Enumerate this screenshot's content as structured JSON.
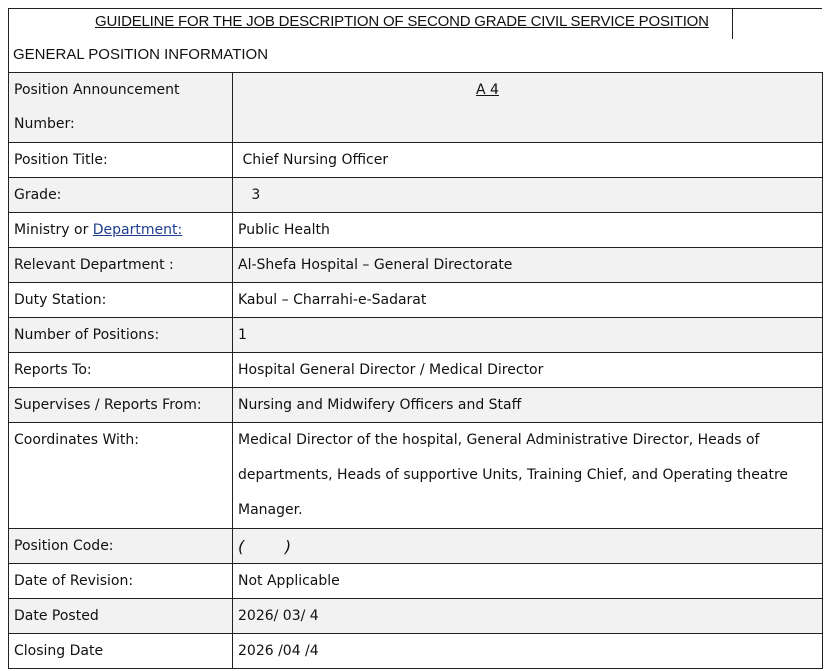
{
  "title": "GUIDELINE FOR THE JOB DESCRIPTION OF SECOND GRADE CIVIL SERVICE POSITION",
  "section": "GENERAL POSITION INFORMATION",
  "ministry_label_prefix": "Ministry or ",
  "ministry_label_link": "Department: ",
  "link_color": "#1f3e8f",
  "rows": [
    {
      "label": "Position Announcement Number:",
      "value": "A 4"
    },
    {
      "label": "Position Title:",
      "value": "Chief Nursing Officer"
    },
    {
      "label": "Grade:",
      "value": "3"
    },
    {
      "label": "Ministry or Department:",
      "value": "Public Health"
    },
    {
      "label": "Relevant Department :",
      "value": "Al-Shefa Hospital – General Directorate"
    },
    {
      "label": "Duty Station:",
      "value": "Kabul – Charrahi-e-Sadarat"
    },
    {
      "label": "Number of Positions:",
      "value": "1"
    },
    {
      "label": "Reports To:",
      "value": "Hospital General Director / Medical Director"
    },
    {
      "label": "Supervises / Reports From:",
      "value": "Nursing and Midwifery Officers and Staff"
    },
    {
      "label": "Coordinates With:",
      "value": "Medical Director of the hospital, General Administrative Director, Heads of departments, Heads of supportive Units, Training Chief, and Operating theatre Manager."
    },
    {
      "label": "Position Code:",
      "value": "(        )"
    },
    {
      "label": "Date of Revision:",
      "value": "Not Applicable"
    },
    {
      "label": "Date Posted",
      "value": "2026/ 03/ 4"
    },
    {
      "label": "Closing Date",
      "value": "2026 /04 /4"
    }
  ]
}
